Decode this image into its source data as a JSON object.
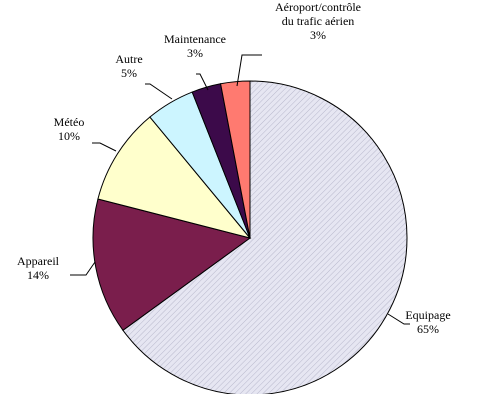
{
  "chart_data": {
    "type": "pie",
    "title": "",
    "start": "top",
    "direction": "clockwise",
    "slices": [
      {
        "label": "Equipage",
        "value": 65,
        "value_label": "65%",
        "color": "#e6e6f2",
        "pattern": "diagonal-hatch"
      },
      {
        "label": "Appareil",
        "value": 14,
        "value_label": "14%",
        "color": "#7a1e4c"
      },
      {
        "label": "Météo",
        "value": 10,
        "value_label": "10%",
        "color": "#ffffcc"
      },
      {
        "label": "Autre",
        "value": 5,
        "value_label": "5%",
        "color": "#ccf5ff"
      },
      {
        "label": "Maintenance",
        "value": 3,
        "value_label": "3%",
        "color": "#3c0a4a"
      },
      {
        "label": "Aéroport/contrôle du trafic aérien",
        "label_lines": [
          "Aéroport/contrôle",
          "du trafic aérien"
        ],
        "value": 3,
        "value_label": "3%",
        "color": "#ff7a70"
      }
    ]
  }
}
